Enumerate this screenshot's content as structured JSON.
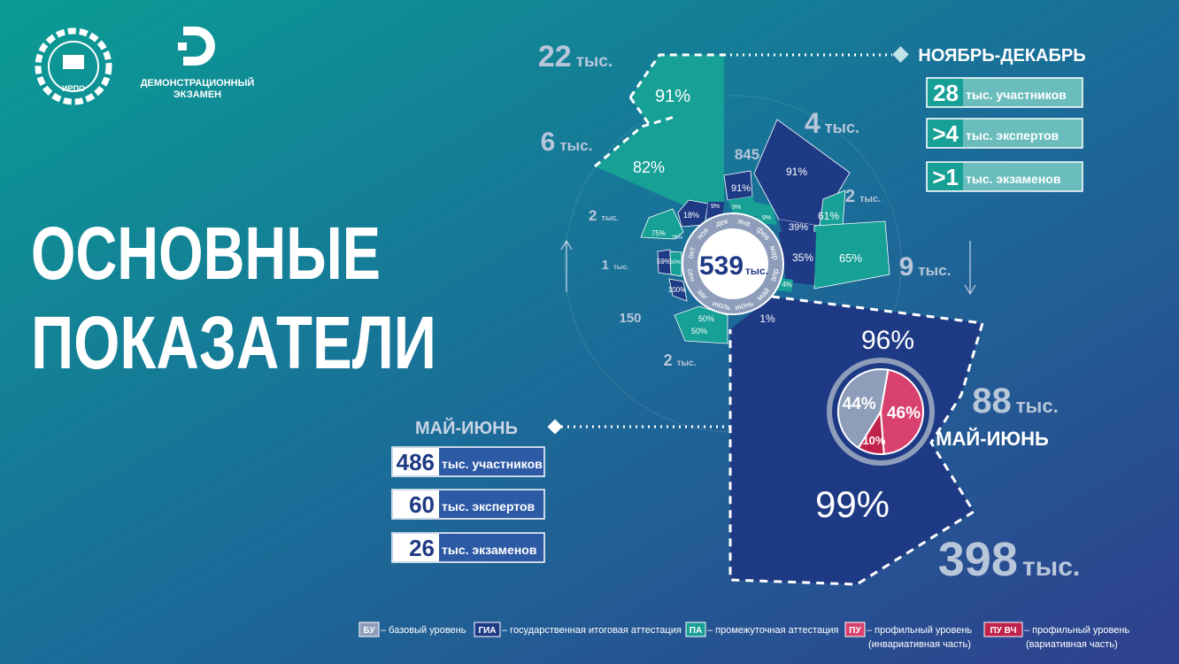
{
  "logo": {
    "org": "ИРПО",
    "brand": [
      "ДЕМОНСТРАЦИОННЫЙ",
      "ЭКЗАМЕН"
    ]
  },
  "title": [
    "ОСНОВНЫЕ",
    "ПОКАЗАТЕЛИ"
  ],
  "nov_dec": {
    "label": "НОЯБРЬ-ДЕКАБРЬ",
    "stats": [
      {
        "value": "28",
        "label": "тыс. участников"
      },
      {
        "value": ">4",
        "label": "тыс. экспертов"
      },
      {
        "value": ">1",
        "label": "тыс. экзаменов"
      }
    ]
  },
  "may_june": {
    "label": "МАЙ-ИЮНЬ",
    "stats": [
      {
        "value": "486",
        "label": "тыс. участников"
      },
      {
        "value": "60",
        "label": "тыс. экспертов"
      },
      {
        "value": "26",
        "label": "тыс. экзаменов"
      }
    ]
  },
  "rose": {
    "center": {
      "value": "539",
      "unit": "тыс."
    },
    "months": [
      "сен",
      "окт",
      "ноя",
      "дек",
      "янв",
      "фев",
      "мар",
      "апр",
      "май",
      "июнь",
      "июль",
      "авг"
    ],
    "totals": [
      {
        "value": "22",
        "unit": "тыс."
      },
      {
        "value": "6",
        "unit": "тыс."
      },
      {
        "value": "2",
        "unit": "тыс."
      },
      {
        "value": "1",
        "unit": "тыс."
      },
      {
        "value": "150"
      },
      {
        "value": "2",
        "unit": "тыс."
      },
      {
        "value": "845"
      },
      {
        "value": "4",
        "unit": "тыс."
      },
      {
        "value": "2",
        "unit": "тыс."
      },
      {
        "value": "9",
        "unit": "тыс."
      },
      {
        "value": "88",
        "unit": "тыс."
      },
      {
        "value": "398",
        "unit": "тыс."
      }
    ],
    "percents": [
      "91%",
      "82%",
      "75%",
      "25%",
      "59%",
      "50%",
      "100%",
      "50%",
      "50%",
      "18%",
      "9%",
      "91%",
      "9%",
      "9%",
      "91%",
      "39%",
      "61%",
      "35%",
      "65%",
      "4%",
      "1%",
      "96%",
      "99%"
    ],
    "period_label": "МАЙ-ИЮНЬ"
  },
  "pie": {
    "values": [
      46,
      10,
      44
    ],
    "value_labels": [
      "46%",
      "10%",
      "44%"
    ],
    "colors": [
      "#d8416f",
      "#c0224c",
      "#8d9dba"
    ]
  },
  "legend": [
    {
      "code": "БУ",
      "text": [
        "– базовый уровень"
      ],
      "color": "#8d9dba"
    },
    {
      "code": "ГИА",
      "text": [
        "– государственная итоговая аттестация"
      ],
      "color": "#1f3a85"
    },
    {
      "code": "ПА",
      "text": [
        "– промежуточная аттестация"
      ],
      "color": "#16a096"
    },
    {
      "code": "ПУ",
      "text": [
        "– профильный уровень",
        "(инвариативная часть)"
      ],
      "color": "#d8416f"
    },
    {
      "code": "ПУ ВЧ",
      "text": [
        "– профильный уровень",
        "(вариативная часть)"
      ],
      "color": "#c0224c"
    }
  ]
}
